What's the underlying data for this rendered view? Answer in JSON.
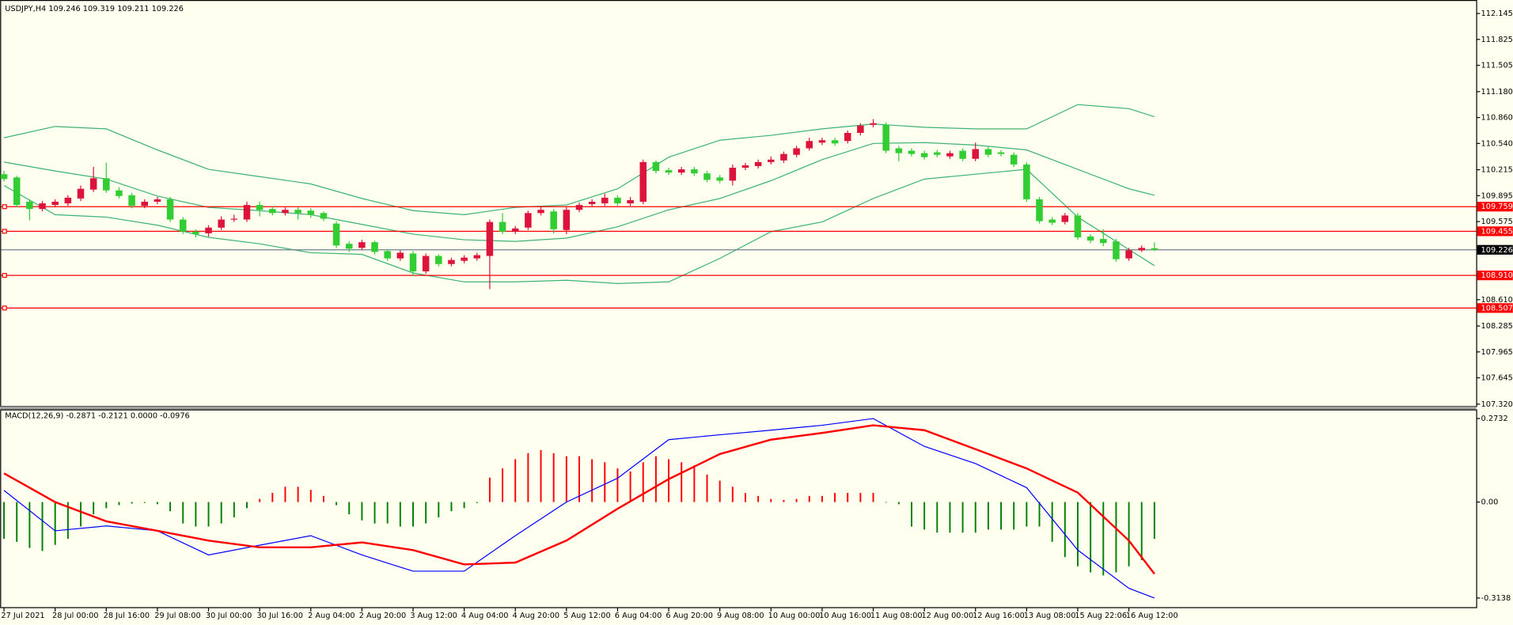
{
  "chart_data": [
    {
      "type": "candlestick",
      "title": "USDJPY,H4  109.246 109.319 109.211 109.226",
      "open": [
        110.16,
        110.12,
        109.82,
        109.73,
        109.78,
        109.8,
        109.86,
        109.97,
        110.11,
        109.96,
        109.9,
        109.77,
        109.82,
        109.85,
        109.6,
        109.45,
        109.43,
        109.5,
        109.6,
        109.6,
        109.78,
        109.73,
        109.68,
        109.72,
        109.71,
        109.68,
        109.55,
        109.3,
        109.25,
        109.32,
        109.21,
        109.12,
        109.18,
        108.96,
        109.15,
        109.05,
        109.09,
        109.12,
        109.15,
        109.57,
        109.45,
        109.5,
        109.68,
        109.7,
        109.47,
        109.72,
        109.79,
        109.8,
        109.87,
        109.8,
        109.82,
        110.31,
        110.21,
        110.18,
        110.22,
        110.17,
        110.12,
        110.08,
        110.24,
        110.26,
        110.31,
        110.33,
        110.4,
        110.48,
        110.55,
        110.58,
        110.57,
        110.67,
        110.77,
        110.77,
        110.48,
        110.45,
        110.42,
        110.43,
        110.38,
        110.45,
        110.35,
        110.47,
        110.43,
        110.4,
        110.28,
        109.85,
        109.6,
        109.57,
        109.65,
        109.39,
        109.36,
        109.33,
        109.12,
        109.22,
        109.246
      ],
      "high": [
        110.2,
        110.14,
        109.85,
        109.83,
        109.85,
        109.9,
        110.02,
        110.25,
        110.3,
        110.0,
        109.93,
        109.85,
        109.88,
        109.88,
        109.63,
        109.48,
        109.53,
        109.64,
        109.66,
        109.82,
        109.82,
        109.76,
        109.75,
        109.75,
        109.74,
        109.7,
        109.58,
        109.33,
        109.35,
        109.34,
        109.23,
        109.22,
        109.21,
        109.18,
        109.17,
        109.13,
        109.16,
        109.19,
        109.6,
        109.68,
        109.52,
        109.71,
        109.76,
        109.73,
        109.75,
        109.81,
        109.85,
        109.92,
        109.9,
        109.88,
        110.34,
        110.33,
        110.24,
        110.25,
        110.25,
        110.2,
        110.15,
        110.28,
        110.3,
        110.34,
        110.38,
        110.44,
        110.51,
        110.61,
        110.61,
        110.61,
        110.7,
        110.79,
        110.84,
        110.8,
        110.51,
        110.48,
        110.45,
        110.46,
        110.45,
        110.48,
        110.55,
        110.5,
        110.46,
        110.43,
        110.31,
        109.88,
        109.63,
        109.68,
        109.68,
        109.42,
        109.48,
        109.36,
        109.25,
        109.28,
        109.319
      ],
      "low": [
        110.07,
        109.75,
        109.59,
        109.7,
        109.75,
        109.77,
        109.83,
        109.94,
        109.93,
        109.86,
        109.74,
        109.74,
        109.79,
        109.57,
        109.42,
        109.38,
        109.39,
        109.47,
        109.57,
        109.57,
        109.64,
        109.65,
        109.65,
        109.6,
        109.62,
        109.58,
        109.25,
        109.2,
        109.22,
        109.17,
        109.09,
        109.09,
        108.9,
        108.93,
        109.02,
        109.02,
        109.06,
        109.09,
        108.74,
        109.42,
        109.42,
        109.47,
        109.65,
        109.43,
        109.42,
        109.69,
        109.76,
        109.77,
        109.77,
        109.77,
        109.79,
        110.17,
        110.15,
        110.15,
        110.14,
        110.06,
        110.05,
        110.02,
        110.21,
        110.23,
        110.28,
        110.3,
        110.37,
        110.45,
        110.52,
        110.51,
        110.54,
        110.64,
        110.74,
        110.42,
        110.32,
        110.38,
        110.34,
        110.37,
        110.35,
        110.32,
        110.32,
        110.37,
        110.38,
        110.25,
        109.82,
        109.55,
        109.53,
        109.54,
        109.35,
        109.31,
        109.27,
        109.08,
        109.09,
        109.2,
        109.211
      ],
      "close": [
        110.1,
        109.78,
        109.73,
        109.8,
        109.82,
        109.87,
        109.98,
        110.11,
        109.96,
        109.89,
        109.77,
        109.82,
        109.85,
        109.6,
        109.45,
        109.42,
        109.5,
        109.6,
        109.61,
        109.78,
        109.72,
        109.68,
        109.72,
        109.68,
        109.66,
        109.61,
        109.28,
        109.24,
        109.32,
        109.2,
        109.12,
        109.19,
        108.96,
        109.15,
        109.05,
        109.1,
        109.13,
        109.16,
        109.57,
        109.45,
        109.49,
        109.68,
        109.72,
        109.48,
        109.72,
        109.78,
        109.82,
        109.87,
        109.8,
        109.84,
        110.31,
        110.2,
        110.18,
        110.22,
        110.17,
        110.09,
        110.08,
        110.24,
        110.27,
        110.31,
        110.34,
        110.41,
        110.48,
        110.57,
        110.58,
        110.54,
        110.67,
        110.76,
        110.79,
        110.45,
        110.42,
        110.41,
        110.37,
        110.4,
        110.42,
        110.35,
        110.47,
        110.4,
        110.41,
        110.28,
        109.85,
        109.58,
        109.56,
        109.65,
        109.38,
        109.34,
        109.31,
        109.11,
        109.22,
        109.25,
        109.226
      ],
      "up_color": "#dc143c",
      "down_color": "#32cd32",
      "bands": {
        "x": [
          0,
          4,
          8,
          12,
          16,
          20,
          24,
          28,
          32,
          36,
          40,
          44,
          48,
          52,
          56,
          60,
          64,
          68,
          72,
          76,
          80,
          84,
          88,
          90
        ],
        "series": [
          {
            "color": "#3cb371",
            "values": [
              110.61,
              110.75,
              110.72,
              110.46,
              110.22,
              110.13,
              110.04,
              109.86,
              109.71,
              109.66,
              109.75,
              109.78,
              109.98,
              110.37,
              110.58,
              110.64,
              110.72,
              110.78,
              110.74,
              110.72,
              110.72,
              111.02,
              110.97,
              110.87
            ]
          },
          {
            "color": "#3cb371",
            "values": [
              110.31,
              110.2,
              110.1,
              109.89,
              109.75,
              109.71,
              109.66,
              109.54,
              109.42,
              109.35,
              109.33,
              109.37,
              109.51,
              109.72,
              109.86,
              110.08,
              110.34,
              110.54,
              110.55,
              110.52,
              110.46,
              110.22,
              109.98,
              109.9
            ]
          },
          {
            "color": "#3cb371",
            "values": [
              110.02,
              109.66,
              109.63,
              109.53,
              109.38,
              109.3,
              109.19,
              109.17,
              108.94,
              108.83,
              108.83,
              108.85,
              108.81,
              108.83,
              109.12,
              109.45,
              109.57,
              109.86,
              110.1,
              110.16,
              110.22,
              109.63,
              109.23,
              109.03
            ]
          }
        ]
      },
      "levels": [
        109.759,
        109.455,
        {
          "value": 108.91,
          "label": "108.910"
        },
        108.507
      ],
      "level_color": "#ff0000",
      "last": 109.226,
      "last_color": "#708090",
      "ylim": [
        107.296,
        112.3
      ],
      "yticks": [
        112.145,
        111.825,
        111.505,
        {
          "value": 111.18,
          "label": "111.180"
        },
        {
          "value": 110.86,
          "label": "110.860"
        },
        {
          "value": 110.54,
          "label": "110.540"
        },
        110.215,
        109.895,
        109.575,
        {
          "value": 108.61,
          "label": "108.610"
        },
        108.285,
        107.965,
        107.645,
        {
          "value": 107.32,
          "label": "107.320"
        }
      ]
    },
    {
      "type": "macd",
      "title": "MACD(12,26,9) -0.2871 -0.2121 0.0000 -0.0976",
      "histogram": [
        -0.12,
        -0.13,
        -0.15,
        -0.16,
        -0.14,
        -0.12,
        -0.08,
        -0.04,
        -0.02,
        -0.01,
        -0.005,
        -0.003,
        -0.007,
        -0.03,
        -0.07,
        -0.08,
        -0.08,
        -0.07,
        -0.05,
        -0.02,
        0.01,
        0.03,
        0.05,
        0.05,
        0.04,
        0.02,
        -0.01,
        -0.04,
        -0.06,
        -0.07,
        -0.07,
        -0.08,
        -0.08,
        -0.07,
        -0.05,
        -0.03,
        -0.02,
        -0.003,
        0.08,
        0.11,
        0.14,
        0.16,
        0.17,
        0.16,
        0.15,
        0.15,
        0.14,
        0.13,
        0.11,
        0.1,
        0.13,
        0.15,
        0.14,
        0.13,
        0.12,
        0.09,
        0.07,
        0.05,
        0.03,
        0.02,
        0.01,
        0.007,
        0.01,
        0.02,
        0.02,
        0.03,
        0.03,
        0.03,
        0.03,
        -0.002,
        -0.007,
        -0.08,
        -0.09,
        -0.1,
        -0.1,
        -0.1,
        -0.1,
        -0.09,
        -0.09,
        -0.09,
        -0.08,
        -0.08,
        -0.13,
        -0.18,
        -0.21,
        -0.23,
        -0.24,
        -0.23,
        -0.21,
        -0.19,
        -0.12
      ],
      "pos_color": "#ff0000",
      "neg_color": "#008000",
      "x": [
        0,
        4,
        8,
        12,
        16,
        20,
        24,
        28,
        32,
        36,
        40,
        44,
        48,
        52,
        56,
        60,
        64,
        68,
        72,
        76,
        80,
        84,
        88,
        90
      ],
      "series": [
        {
          "color": "#0000ff",
          "values": [
            0.038,
            -0.094,
            -0.078,
            -0.094,
            -0.173,
            -0.141,
            -0.11,
            -0.173,
            -0.226,
            -0.226,
            -0.11,
            0,
            0.078,
            0.204,
            0.22,
            0.235,
            0.251,
            0.273,
            0.182,
            0.126,
            0.047,
            -0.157,
            -0.282,
            -0.314
          ]
        },
        {
          "color": "#ff0000",
          "values": [
            0.094,
            0,
            -0.063,
            -0.094,
            -0.126,
            -0.148,
            -0.148,
            -0.132,
            -0.157,
            -0.204,
            -0.198,
            -0.126,
            -0.022,
            0.075,
            0.157,
            0.204,
            0.226,
            0.251,
            0.235,
            0.173,
            0.11,
            0.031,
            -0.126,
            -0.235
          ]
        }
      ],
      "ylim": [
        -0.3453,
        0.3013
      ],
      "yticks": [
        0.2732,
        {
          "value": 0,
          "label": "0.00"
        },
        -0.3138
      ],
      "xticks": [
        {
          "value": 0,
          "label": "27 Jul 2021"
        },
        {
          "value": 4,
          "label": "28 Jul 00:00"
        },
        {
          "value": 8,
          "label": "28 Jul 16:00"
        },
        {
          "value": 12,
          "label": "29 Jul 08:00"
        },
        {
          "value": 16,
          "label": "30 Jul 00:00"
        },
        {
          "value": 20,
          "label": "30 Jul 16:00"
        },
        {
          "value": 24,
          "label": "2 Aug 04:00"
        },
        {
          "value": 28,
          "label": "2 Aug 20:00"
        },
        {
          "value": 32,
          "label": "3 Aug 12:00"
        },
        {
          "value": 36,
          "label": "4 Aug 04:00"
        },
        {
          "value": 40,
          "label": "4 Aug 20:00"
        },
        {
          "value": 44,
          "label": "5 Aug 12:00"
        },
        {
          "value": 48,
          "label": "6 Aug 04:00"
        },
        {
          "value": 52,
          "label": "6 Aug 20:00"
        },
        {
          "value": 56,
          "label": "9 Aug 08:00"
        },
        {
          "value": 60,
          "label": "10 Aug 00:00"
        },
        {
          "value": 64,
          "label": "10 Aug 16:00"
        },
        {
          "value": 68,
          "label": "11 Aug 08:00"
        },
        {
          "value": 72,
          "label": "12 Aug 00:00"
        },
        {
          "value": 76,
          "label": "12 Aug 16:00"
        },
        {
          "value": 80,
          "label": "13 Aug 08:00"
        },
        {
          "value": 84,
          "label": "15 Aug 22:06"
        },
        {
          "value": 88,
          "label": "16 Aug 12:00"
        }
      ]
    }
  ]
}
